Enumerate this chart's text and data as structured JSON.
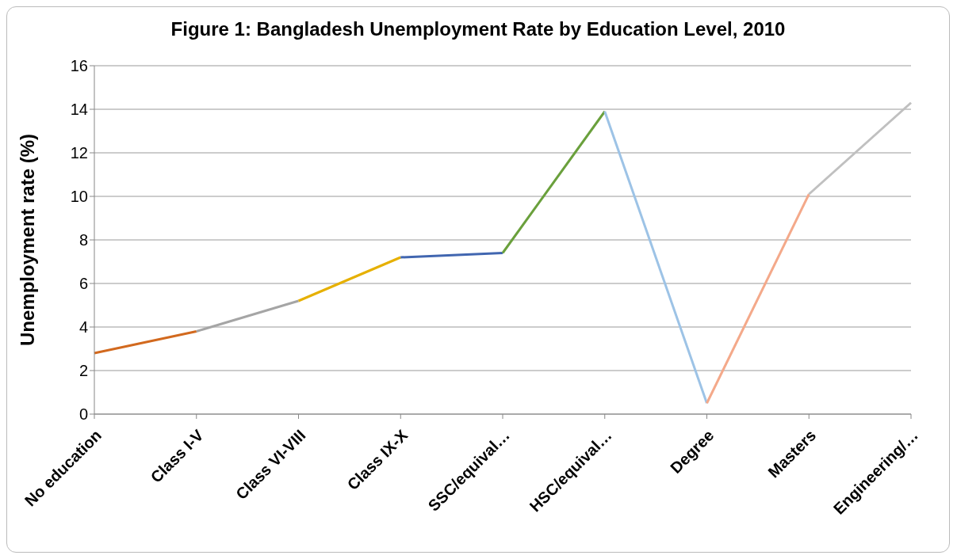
{
  "chart_data": {
    "type": "line",
    "title": "Figure 1: Bangladesh Unemployment Rate by Education Level, 2010",
    "ylabel": "Unemployment rate (%)",
    "categories": [
      "No education",
      "Class I-V",
      "Class VI-VIII",
      "Class IX-X",
      "SSC/equival…",
      "HSC/equival…",
      "Degree",
      "Masters",
      "Engineering/…"
    ],
    "series": [
      {
        "color": "#d2691e",
        "values": [
          2.8,
          3.8,
          null,
          null,
          null,
          null,
          null,
          null,
          null
        ]
      },
      {
        "color": "#a5a5a5",
        "values": [
          null,
          3.8,
          5.2,
          null,
          null,
          null,
          null,
          null,
          null
        ]
      },
      {
        "color": "#e6b000",
        "values": [
          null,
          null,
          5.2,
          7.2,
          null,
          null,
          null,
          null,
          null
        ]
      },
      {
        "color": "#4166b0",
        "values": [
          null,
          null,
          null,
          7.2,
          7.4,
          null,
          null,
          null,
          null
        ]
      },
      {
        "color": "#6aa03c",
        "values": [
          null,
          null,
          null,
          null,
          7.4,
          13.9,
          null,
          null,
          null
        ]
      },
      {
        "color": "#9dc3e6",
        "values": [
          null,
          null,
          null,
          null,
          null,
          13.9,
          0.5,
          null,
          null
        ]
      },
      {
        "color": "#f4a98a",
        "values": [
          null,
          null,
          null,
          null,
          null,
          null,
          0.5,
          10.1,
          null
        ]
      },
      {
        "color": "#c0c0c0",
        "values": [
          null,
          null,
          null,
          null,
          null,
          null,
          null,
          10.1,
          14.3
        ]
      }
    ],
    "ylim": [
      0,
      16
    ],
    "yticks": [
      0,
      2,
      4,
      6,
      8,
      10,
      12,
      14,
      16
    ],
    "grid": "y",
    "legend": false,
    "marker": "none",
    "line_style": "solid"
  }
}
